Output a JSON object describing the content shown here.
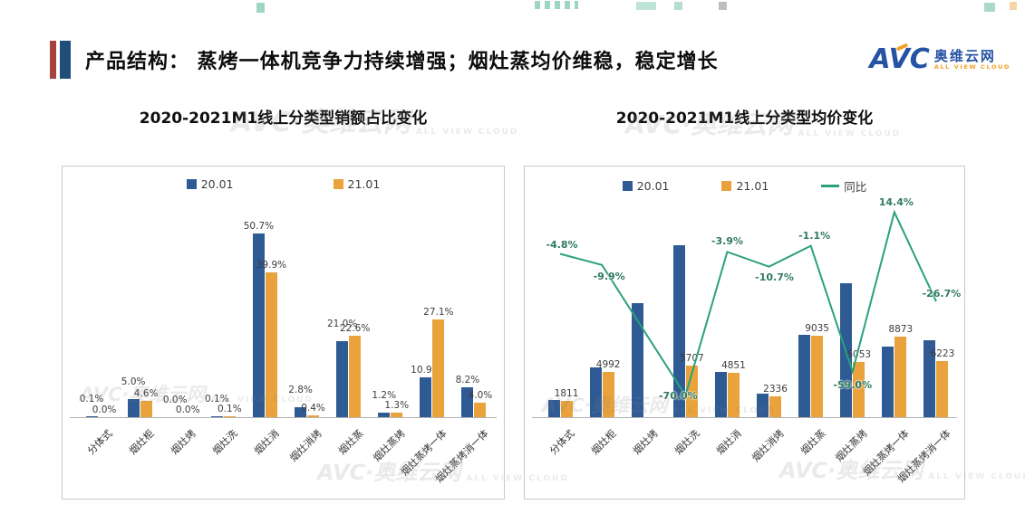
{
  "header": {
    "title": "产品结构： 蒸烤一体机竞争力持续增强；烟灶蒸均价维稳，稳定增长",
    "accent_colors": {
      "bar1": "#a8423e",
      "bar2": "#1f4e79"
    },
    "logo": {
      "avc": "AVC",
      "cn": "奥维云网",
      "en": "ALL VIEW CLOUD",
      "blue": "#2553a3",
      "orange": "#f2a024"
    }
  },
  "watermark": {
    "main": "AVC·奥维云网",
    "sub": "ALL VIEW CLOUD"
  },
  "chart_data": [
    {
      "type": "bar",
      "title": "2020-2021M1线上分类型销额占比变化",
      "unit": "%",
      "ylim": [
        0,
        60
      ],
      "y_axis_visible": false,
      "legend_position": "top",
      "categories": [
        "分体式",
        "烟灶柜",
        "烟灶烤",
        "烟灶洗",
        "烟灶消",
        "烟灶消烤",
        "烟灶蒸",
        "烟灶蒸烤",
        "烟灶蒸烤一体",
        "烟灶蒸烤消一体"
      ],
      "series": [
        {
          "name": "20.01",
          "kind": "bar",
          "color": "#2f5b95",
          "data_labels": true,
          "values": [
            0.1,
            5.0,
            0.0,
            0.1,
            50.7,
            2.8,
            21.0,
            1.2,
            10.9,
            8.2
          ]
        },
        {
          "name": "21.01",
          "kind": "bar",
          "color": "#e9a23c",
          "data_labels": true,
          "values": [
            0.0,
            4.6,
            0.0,
            0.1,
            39.9,
            0.4,
            22.6,
            1.3,
            27.1,
            4.0
          ]
        }
      ]
    },
    {
      "type": "bar+line",
      "title": "2020-2021M1线上分类型均价变化",
      "unit": "",
      "ylim": [
        0,
        24000
      ],
      "y_axis_visible": false,
      "legend_position": "top",
      "categories": [
        "分体式",
        "烟灶柜",
        "烟灶烤",
        "烟灶洗",
        "烟灶消",
        "烟灶消烤",
        "烟灶蒸",
        "烟灶蒸烤",
        "烟灶蒸烤一体",
        "烟灶蒸烤消一体"
      ],
      "series": [
        {
          "name": "20.01",
          "kind": "bar",
          "color": "#2f5b95",
          "data_labels": false,
          "values": [
            1902,
            5540,
            12600,
            19023,
            5048,
            2616,
            9135,
            14763,
            7756,
            8490
          ]
        },
        {
          "name": "21.01",
          "kind": "bar",
          "color": "#e9a23c",
          "data_labels": true,
          "values": [
            1811,
            4992,
            null,
            5707,
            4851,
            2336,
            9035,
            6053,
            8873,
            6223
          ]
        },
        {
          "name": "同比",
          "kind": "line",
          "color": "#2aa17c",
          "unit": "%",
          "ylim": [
            -80,
            20
          ],
          "data_labels": true,
          "values": [
            -4.8,
            -9.9,
            null,
            -70.0,
            -3.9,
            -10.7,
            -1.1,
            -59.0,
            14.4,
            -26.7
          ]
        }
      ]
    }
  ]
}
